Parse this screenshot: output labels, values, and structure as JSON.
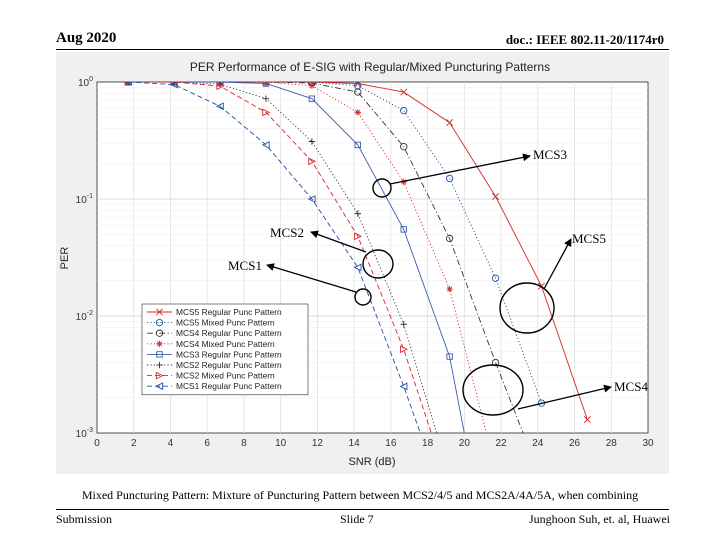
{
  "header": {
    "date": "Aug 2020",
    "doc_id": "doc.: IEEE 802.11-20/1174r0"
  },
  "caption": "Mixed Puncturing Pattern: Mixture of Puncturing Pattern between MCS2/4/5 and MCS2A/4A/5A, when combining",
  "footer": {
    "left": "Submission",
    "center": "Slide 7",
    "right": "Junghoon Suh, et. al, Huawei"
  },
  "annotations": [
    {
      "text": "MCS3"
    },
    {
      "text": "MCS2"
    },
    {
      "text": "MCS5"
    },
    {
      "text": "MCS1"
    },
    {
      "text": "MCS4"
    }
  ],
  "chart_data": {
    "type": "line",
    "title": "PER Performance of E-SIG with Regular/Mixed Puncturing Patterns",
    "xlabel": "SNR (dB)",
    "ylabel": "PER",
    "xlim": [
      0,
      30
    ],
    "ylim": [
      0.001,
      1
    ],
    "yscale": "log",
    "xticks": [
      "0",
      "2",
      "4",
      "6",
      "8",
      "10",
      "12",
      "14",
      "16",
      "18",
      "20",
      "22",
      "24",
      "26",
      "28",
      "30"
    ],
    "yticks": [
      "10^0",
      "10^-1",
      "10^-2",
      "10^-3"
    ],
    "grid": true,
    "legend_position": "bottom-left",
    "series": [
      {
        "name": "MCS5 Regular Punc Pattern",
        "color": "#d62728",
        "dash": "solid",
        "marker": "x",
        "x": [
          1.7,
          4.2,
          6.7,
          9.2,
          11.7,
          14.2,
          16.7,
          19.2,
          21.7,
          24.2,
          26.7
        ],
        "y": [
          1,
          1,
          1,
          1,
          1,
          0.97,
          0.82,
          0.45,
          0.105,
          0.018,
          0.0013
        ]
      },
      {
        "name": "MCS5 Mixed Punc Pattern",
        "color": "#1f4fa8",
        "dash": "dotted",
        "marker": "o",
        "x": [
          1.7,
          4.2,
          6.7,
          9.2,
          11.7,
          14.2,
          16.7,
          19.2,
          21.7,
          24.2
        ],
        "y": [
          1,
          1,
          1,
          1,
          1,
          0.93,
          0.57,
          0.15,
          0.021,
          0.0018
        ]
      },
      {
        "name": "MCS4 Regular Punc Pattern",
        "color": "#333333",
        "dash": "dashdot",
        "marker": "o",
        "x": [
          1.7,
          4.2,
          6.7,
          9.2,
          11.7,
          14.2,
          16.7,
          19.2,
          21.7,
          23.2
        ],
        "y": [
          1,
          1,
          1,
          1,
          0.98,
          0.82,
          0.28,
          0.046,
          0.004,
          0.001
        ]
      },
      {
        "name": "MCS4 Mixed Punc Pattern",
        "color": "#d62728",
        "dash": "dotted",
        "marker": "*",
        "x": [
          1.7,
          4.2,
          6.7,
          9.2,
          11.7,
          14.2,
          16.7,
          19.2,
          21.2
        ],
        "y": [
          1,
          1,
          1,
          1,
          0.93,
          0.55,
          0.14,
          0.017,
          0.001
        ]
      },
      {
        "name": "MCS3 Regular Punc Pattern",
        "color": "#3a5bb5",
        "dash": "solid",
        "marker": "s",
        "x": [
          1.7,
          4.2,
          6.7,
          9.2,
          11.7,
          14.2,
          16.7,
          19.2,
          20.0
        ],
        "y": [
          1,
          1,
          1,
          0.97,
          0.72,
          0.29,
          0.055,
          0.0045,
          0.001
        ]
      },
      {
        "name": "MCS2 Regular Punc Pattern",
        "color": "#333333",
        "dash": "dotted",
        "marker": "+",
        "x": [
          1.7,
          4.2,
          6.7,
          9.2,
          11.7,
          14.2,
          16.7,
          18.5
        ],
        "y": [
          1,
          1,
          0.96,
          0.72,
          0.31,
          0.075,
          0.0085,
          0.001
        ]
      },
      {
        "name": "MCS2 Mixed Punc Pattern",
        "color": "#d62728",
        "dash": "dashed",
        "marker": ">",
        "x": [
          1.7,
          4.2,
          6.7,
          9.2,
          11.7,
          14.2,
          16.7,
          18.2
        ],
        "y": [
          1,
          1,
          0.92,
          0.55,
          0.21,
          0.048,
          0.0052,
          0.001
        ]
      },
      {
        "name": "MCS1 Regular Punc Pattern",
        "color": "#1f4fa8",
        "dash": "dashed",
        "marker": "<",
        "x": [
          1.7,
          4.2,
          6.7,
          9.2,
          11.7,
          14.2,
          16.7,
          17.6
        ],
        "y": [
          1,
          0.95,
          0.62,
          0.29,
          0.1,
          0.026,
          0.0025,
          0.001
        ]
      }
    ]
  }
}
